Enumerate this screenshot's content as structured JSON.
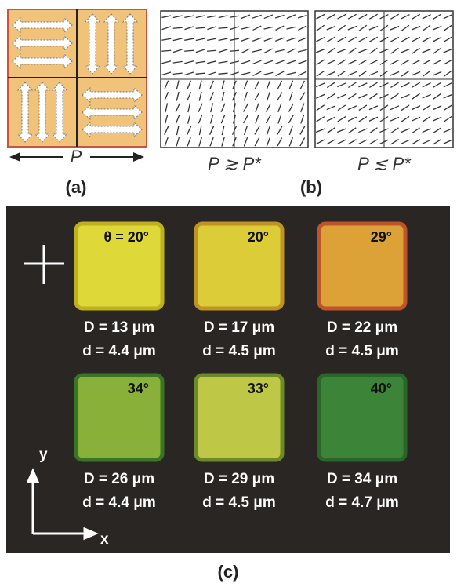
{
  "panel_a": {
    "axis_label": "P",
    "label": "(a)"
  },
  "panel_b": {
    "conditions": [
      "P ≳ P*",
      "P ≲ P*"
    ],
    "label": "(b)"
  },
  "panel_c": {
    "label": "(c)",
    "axes": {
      "y": "y",
      "x": "x"
    },
    "samples": [
      {
        "angle": "θ = 20°",
        "D": "D = 13 μm",
        "d": "d = 4.4 μm"
      },
      {
        "angle": "20°",
        "D": "D = 17 μm",
        "d": "d = 4.5 μm"
      },
      {
        "angle": "29°",
        "D": "D = 22 μm",
        "d": "d = 4.5 μm"
      },
      {
        "angle": "34°",
        "D": "D = 26 μm",
        "d": "d = 4.4 μm"
      },
      {
        "angle": "33°",
        "D": "D = 29 μm",
        "d": "d = 4.5 μm"
      },
      {
        "angle": "40°",
        "D": "D = 34 μm",
        "d": "d = 4.7 μm"
      }
    ]
  }
}
